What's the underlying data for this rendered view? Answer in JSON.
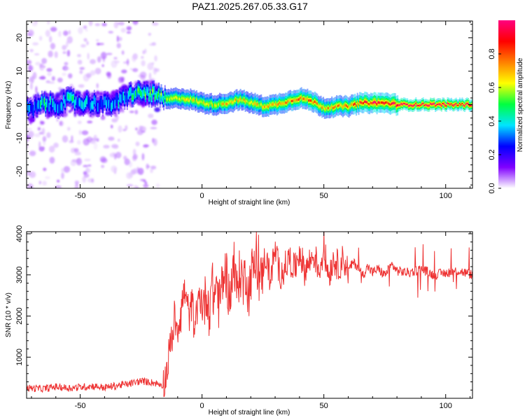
{
  "title": "PAZ1.2025.267.05.33.G17",
  "chart_data": [
    {
      "type": "heatmap",
      "name": "spectrogram",
      "xlabel": "Height of straight line (km)",
      "ylabel": "Frequency (Hz)",
      "xlim": [
        -72,
        111
      ],
      "ylim": [
        -25,
        25
      ],
      "xticks": [
        -50,
        0,
        50,
        100
      ],
      "yticks": [
        -20,
        -10,
        0,
        10,
        20
      ],
      "grid": false,
      "colorbar": {
        "label": "Normalized spectral amplitude",
        "range": [
          0,
          1
        ],
        "ticks": [
          "0.0",
          "0.2",
          "0.4",
          "0.6",
          "0.8"
        ],
        "colormap": [
          "#ffffff",
          "#8000ff",
          "#0000ff",
          "#00e5ff",
          "#00ff40",
          "#ffff00",
          "#ff8000",
          "#ff0000",
          "#ff0080"
        ]
      },
      "ridge": {
        "x": [
          -70,
          -65,
          -60,
          -55,
          -50,
          -45,
          -40,
          -35,
          -30,
          -25,
          -20,
          -15,
          -10,
          -5,
          0,
          5,
          10,
          15,
          20,
          25,
          30,
          35,
          40,
          45,
          50,
          55,
          60,
          65,
          70,
          75,
          80,
          85,
          90,
          95,
          100,
          105,
          110
        ],
        "frequency_hz": [
          -1.5,
          0.5,
          -0.5,
          1.5,
          0.5,
          0.5,
          0,
          0.5,
          3,
          3.5,
          3,
          1.5,
          2,
          1.5,
          0.5,
          0,
          0.5,
          1.5,
          0.5,
          -0.5,
          0,
          1,
          2,
          1,
          -1,
          -0.5,
          -0.5,
          0.5,
          0.5,
          0.5,
          0,
          0,
          0,
          0,
          0,
          0,
          0
        ],
        "peak_amplitude": [
          0.3,
          0.4,
          0.3,
          0.4,
          0.35,
          0.3,
          0.3,
          0.35,
          0.4,
          0.45,
          0.5,
          0.55,
          0.6,
          0.6,
          0.6,
          0.6,
          0.65,
          0.65,
          0.65,
          0.65,
          0.7,
          0.7,
          0.8,
          0.75,
          0.7,
          0.7,
          0.75,
          0.85,
          0.9,
          0.85,
          0.95,
          1,
          1,
          1,
          1,
          1,
          1
        ]
      }
    },
    {
      "type": "line",
      "name": "snr",
      "xlabel": "Height of straight line (km)",
      "ylabel": "SNR (10 * v/v)",
      "xlim": [
        -72,
        111
      ],
      "ylim": [
        0,
        4050
      ],
      "xticks": [
        -50,
        0,
        50,
        100
      ],
      "yticks": [
        1000,
        2000,
        3000,
        4000
      ],
      "grid": false,
      "color": "#ee3333",
      "series": [
        {
          "x": [
            -72,
            -65,
            -60,
            -55,
            -50,
            -45,
            -40,
            -35,
            -30,
            -25,
            -20,
            -18,
            -16,
            -15,
            -14,
            -13,
            -12,
            -11,
            -10,
            -9,
            -8,
            -7,
            -6,
            -5,
            -4,
            -3,
            -2,
            -1,
            0,
            1,
            2,
            3,
            4,
            5,
            6,
            7,
            8,
            9,
            10,
            11,
            12,
            13,
            14,
            15,
            16,
            17,
            18,
            19,
            20,
            22,
            24,
            26,
            28,
            30,
            32,
            34,
            36,
            38,
            40,
            42,
            44,
            46,
            48,
            50,
            52,
            54,
            56,
            58,
            60,
            62,
            64,
            66,
            68,
            70,
            72,
            75,
            78,
            80,
            85,
            90,
            95,
            100,
            105,
            111
          ],
          "y": [
            250,
            230,
            280,
            250,
            270,
            300,
            260,
            310,
            350,
            420,
            380,
            350,
            320,
            480,
            900,
            1300,
            1600,
            1900,
            1750,
            2000,
            2400,
            2600,
            2200,
            2000,
            2350,
            1600,
            2100,
            2500,
            2400,
            2300,
            2600,
            2100,
            2800,
            2400,
            2900,
            2200,
            2700,
            3000,
            3050,
            2500,
            2800,
            3200,
            2600,
            2900,
            3100,
            2700,
            3200,
            2500,
            3000,
            3300,
            2800,
            3500,
            2900,
            3600,
            3000,
            3200,
            3400,
            3100,
            3600,
            3100,
            3300,
            3500,
            3100,
            3600,
            3000,
            3400,
            3200,
            3400,
            3100,
            3300,
            3200,
            3000,
            3200,
            3050,
            3150,
            3000,
            3250,
            3100,
            3050,
            3150,
            3000,
            3050,
            3100,
            3000
          ]
        }
      ]
    }
  ]
}
